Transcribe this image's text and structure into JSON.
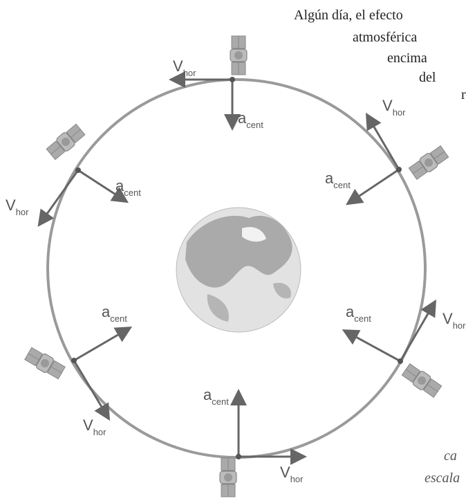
{
  "text_fragments": {
    "top": [
      "Algún día, el efecto",
      "atmosférica",
      "encima",
      "del",
      "r"
    ],
    "bottom": [
      "ca",
      "escala"
    ]
  },
  "positions": [
    {
      "velocity": {
        "symbol": "V",
        "subscript": "hor"
      },
      "acceleration": {
        "symbol": "a",
        "subscript": "cent"
      }
    },
    {
      "velocity": {
        "symbol": "V",
        "subscript": "hor"
      },
      "acceleration": {
        "symbol": "a",
        "subscript": "cent"
      }
    },
    {
      "velocity": {
        "symbol": "V",
        "subscript": "hor"
      },
      "acceleration": {
        "symbol": "a",
        "subscript": "cent"
      }
    },
    {
      "velocity": {
        "symbol": "V",
        "subscript": "hor"
      },
      "acceleration": {
        "symbol": "a",
        "subscript": "cent"
      }
    },
    {
      "velocity": {
        "symbol": "V",
        "subscript": "hor"
      },
      "acceleration": {
        "symbol": "a",
        "subscript": "cent"
      }
    },
    {
      "velocity": {
        "symbol": "V",
        "subscript": "hor"
      },
      "acceleration": {
        "symbol": "a",
        "subscript": "cent"
      }
    }
  ]
}
